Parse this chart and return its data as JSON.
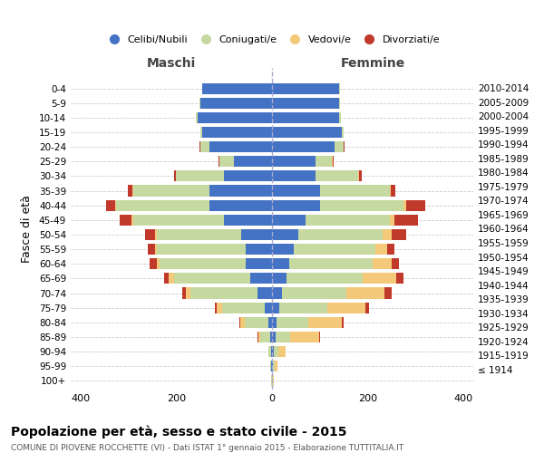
{
  "age_groups": [
    "100+",
    "95-99",
    "90-94",
    "85-89",
    "80-84",
    "75-79",
    "70-74",
    "65-69",
    "60-64",
    "55-59",
    "50-54",
    "45-49",
    "40-44",
    "35-39",
    "30-34",
    "25-29",
    "20-24",
    "15-19",
    "10-14",
    "5-9",
    "0-4"
  ],
  "birth_years": [
    "≤ 1914",
    "1915-1919",
    "1920-1924",
    "1925-1929",
    "1930-1934",
    "1935-1939",
    "1940-1944",
    "1945-1949",
    "1950-1954",
    "1955-1959",
    "1960-1964",
    "1965-1969",
    "1970-1974",
    "1975-1979",
    "1980-1984",
    "1985-1989",
    "1990-1994",
    "1995-1999",
    "2000-2004",
    "2005-2009",
    "2010-2014"
  ],
  "males": {
    "celibi": [
      0,
      1,
      2,
      4,
      7,
      15,
      30,
      45,
      55,
      55,
      65,
      100,
      130,
      130,
      100,
      80,
      130,
      145,
      155,
      150,
      145
    ],
    "coniugati": [
      1,
      2,
      5,
      20,
      50,
      90,
      140,
      160,
      180,
      185,
      175,
      190,
      195,
      160,
      100,
      30,
      20,
      5,
      3,
      2,
      1
    ],
    "vedovi": [
      0,
      0,
      1,
      5,
      10,
      10,
      10,
      10,
      5,
      5,
      5,
      3,
      2,
      1,
      0,
      0,
      0,
      0,
      0,
      0,
      0
    ],
    "divorziati": [
      0,
      0,
      0,
      1,
      2,
      5,
      8,
      10,
      15,
      15,
      20,
      25,
      20,
      10,
      5,
      2,
      1,
      0,
      0,
      0,
      0
    ]
  },
  "females": {
    "nubili": [
      0,
      2,
      3,
      8,
      10,
      15,
      20,
      30,
      35,
      45,
      55,
      70,
      100,
      100,
      90,
      90,
      130,
      145,
      140,
      140,
      140
    ],
    "coniugate": [
      2,
      4,
      10,
      30,
      65,
      100,
      135,
      160,
      175,
      170,
      175,
      175,
      175,
      145,
      90,
      35,
      20,
      5,
      3,
      2,
      1
    ],
    "vedove": [
      1,
      5,
      15,
      60,
      70,
      80,
      80,
      70,
      40,
      25,
      20,
      10,
      5,
      3,
      2,
      1,
      0,
      0,
      0,
      0,
      0
    ],
    "divorziate": [
      0,
      0,
      1,
      2,
      5,
      8,
      15,
      15,
      15,
      15,
      30,
      50,
      40,
      10,
      5,
      2,
      1,
      0,
      0,
      0,
      0
    ]
  },
  "colors": {
    "celibi": "#4472c4",
    "coniugati": "#c5d9a0",
    "vedovi": "#f5c97a",
    "divorziati": "#c0392b"
  },
  "xlim": 420,
  "title": "Popolazione per età, sesso e stato civile - 2015",
  "subtitle": "COMUNE DI PIOVENE ROCCHETTE (VI) - Dati ISTAT 1° gennaio 2015 - Elaborazione TUTTITALIA.IT",
  "ylabel_left": "Fasce di età",
  "xlabel_left": "Maschi",
  "xlabel_right": "Femmine"
}
